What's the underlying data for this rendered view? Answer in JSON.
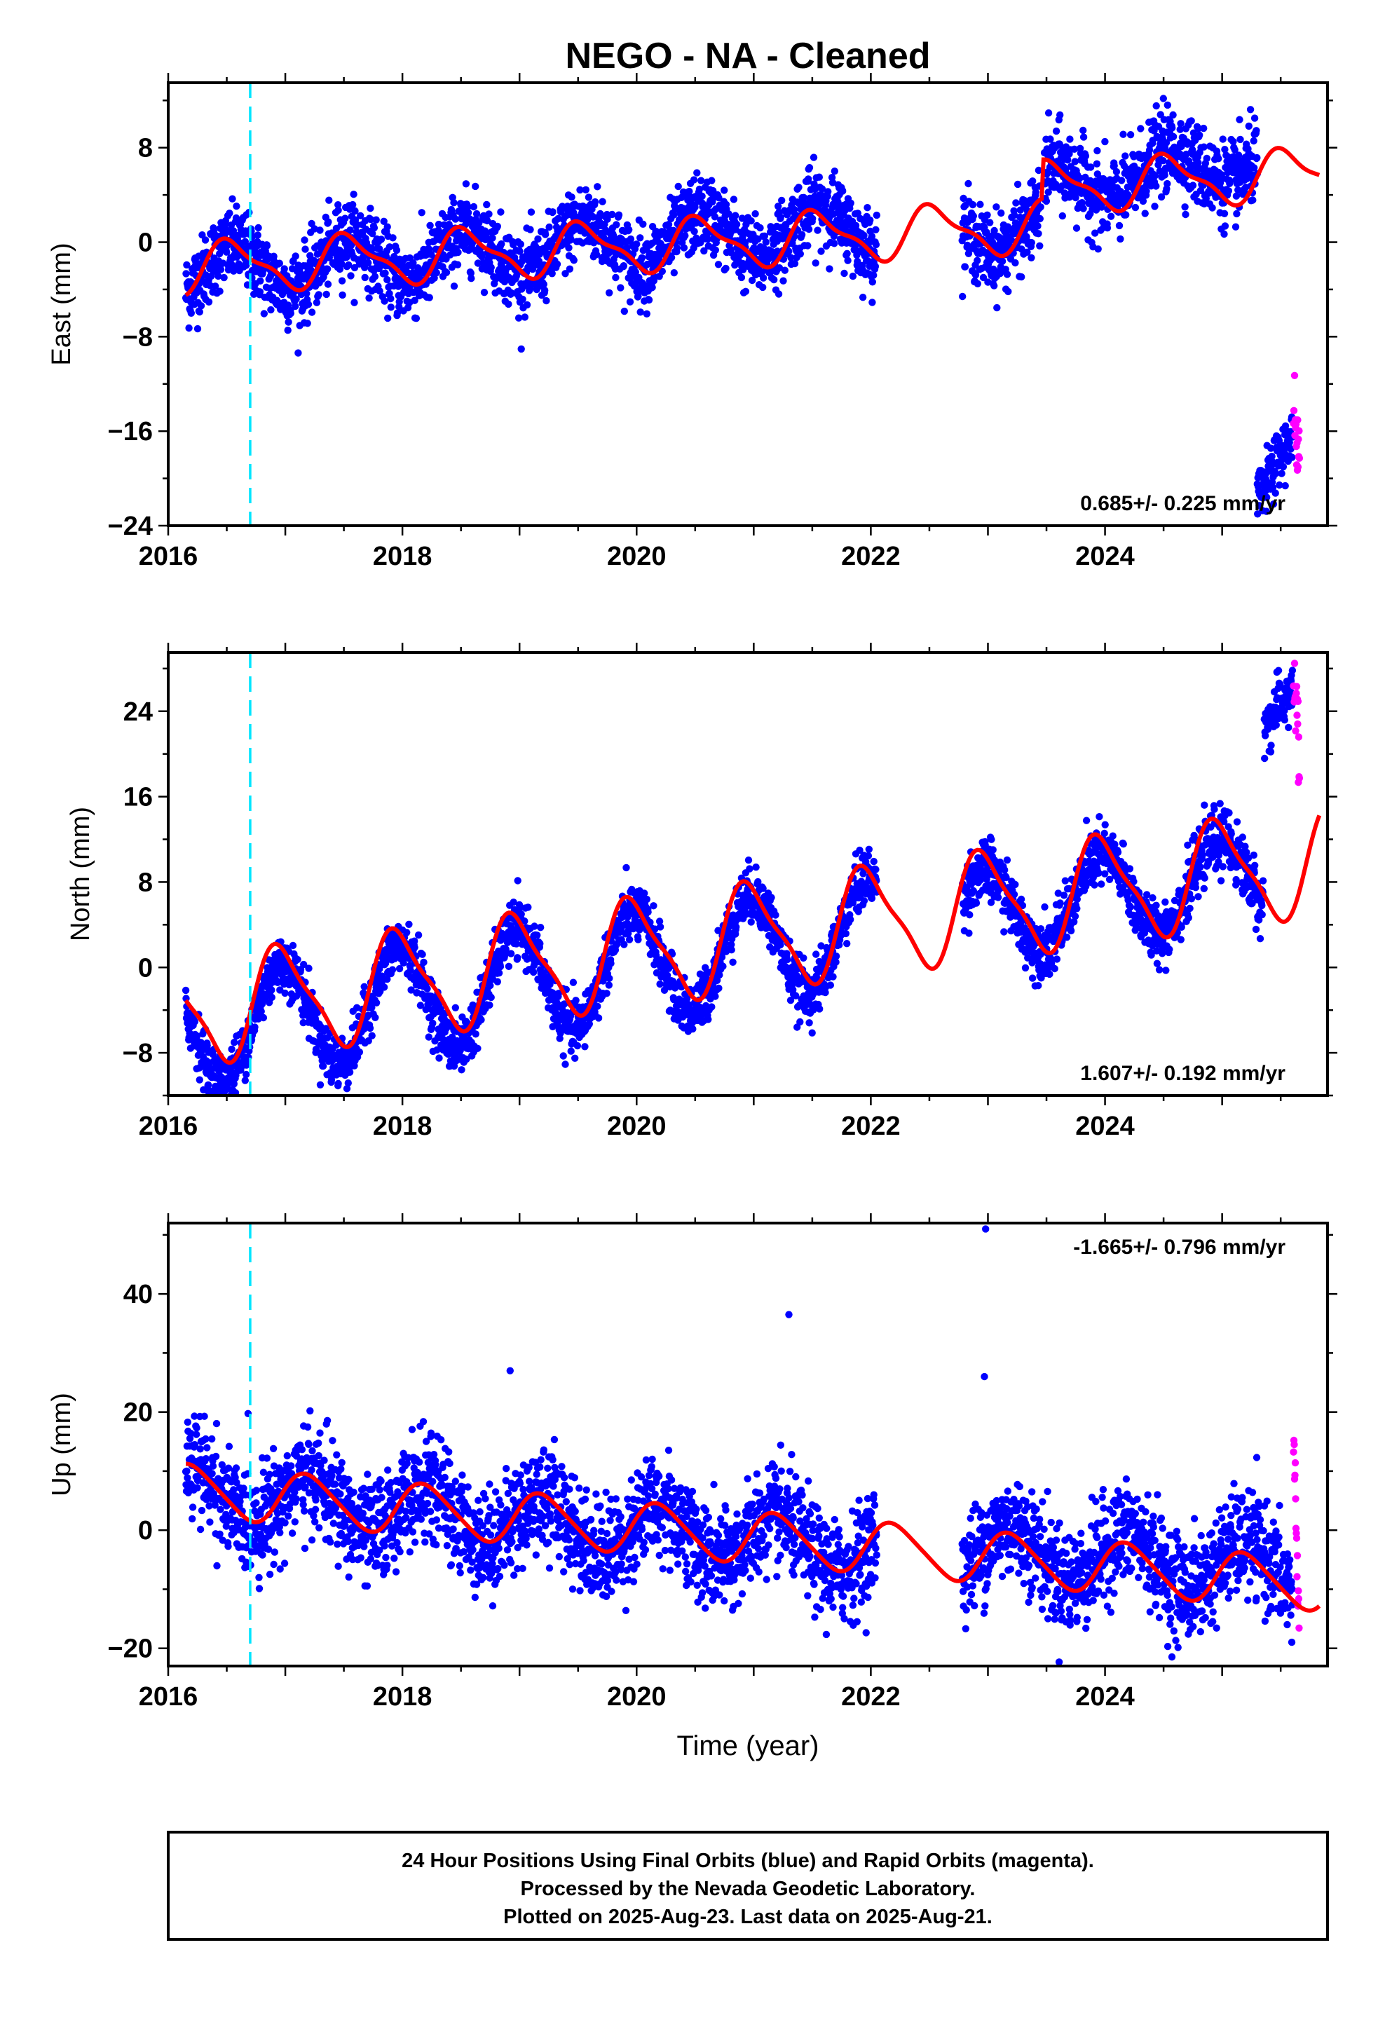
{
  "title": "NEGO  - NA - Cleaned",
  "xlabel": "Time (year)",
  "colors": {
    "final_orbits": "#0000ff",
    "rapid_orbits": "#ff00ff",
    "model": "#ff0000",
    "event_line": "#00e5ff",
    "frame": "#000000"
  },
  "footer": {
    "line1": "24 Hour Positions Using Final Orbits (blue) and Rapid Orbits (magenta).",
    "line2": "Processed by the Nevada Geodetic Laboratory.",
    "line3": "Plotted on 2025-Aug-23. Last data on 2025-Aug-21."
  },
  "chart_data": [
    {
      "type": "scatter",
      "component": "East",
      "ylabel": "East (mm)",
      "xlim": [
        2016.0,
        2025.9
      ],
      "ylim": [
        -24,
        13.5
      ],
      "xticks": [
        2016,
        2018,
        2020,
        2022,
        2024
      ],
      "yticks": [
        -24,
        -16,
        -8,
        0,
        8
      ],
      "velocity_label": "0.685+/- 0.225 mm/yr",
      "event_line_x": 2016.7,
      "series": [
        {
          "role": "final-orbits",
          "segments": [
            {
              "x_start": 2016.15,
              "x_end": 2022.05,
              "trend_start": -2.6,
              "trend_end": 1.4,
              "amplitude": 2.0,
              "phase": 0.3,
              "scatter": 1.6
            },
            {
              "x_start": 2022.78,
              "x_end": 2023.45,
              "trend_start": 1.2,
              "trend_end": 1.0,
              "amplitude": 2.0,
              "phase": 0.3,
              "scatter": 1.6
            },
            {
              "x_start": 2023.48,
              "x_end": 2025.3,
              "trend_start": 4.5,
              "trend_end": 7.2,
              "amplitude": 1.8,
              "phase": 0.3,
              "scatter": 1.7
            },
            {
              "x_start": 2025.3,
              "x_end": 2025.6,
              "trend_start": -22.0,
              "trend_end": -17.0,
              "amplitude": 0.5,
              "phase": 0.3,
              "scatter": 1.2
            }
          ]
        },
        {
          "role": "rapid-orbits",
          "segments": [
            {
              "x_start": 2025.61,
              "x_end": 2025.66,
              "trend_start": -15.0,
              "trend_end": -20.0,
              "amplitude": 0,
              "phase": 0,
              "scatter": 2.2
            }
          ]
        }
      ],
      "model": {
        "x_start": 2016.15,
        "x_end": 2025.83,
        "trend_start": -2.2,
        "trend_end": 2.5,
        "annual_amplitude": 2.0,
        "annual_phase": 0.3,
        "semiannual_amplitude": 0.7,
        "offsets": [
          {
            "x": 2023.47,
            "size": 3.3
          }
        ]
      }
    },
    {
      "type": "scatter",
      "component": "North",
      "ylabel": "North (mm)",
      "xlim": [
        2016.0,
        2025.9
      ],
      "ylim": [
        -12,
        29.5
      ],
      "xticks": [
        2016,
        2018,
        2020,
        2022,
        2024
      ],
      "yticks": [
        -8,
        0,
        8,
        16,
        24
      ],
      "velocity_label": "1.607+/- 0.192 mm/yr",
      "event_line_x": 2016.7,
      "series": [
        {
          "role": "final-orbits",
          "segments": [
            {
              "x_start": 2016.15,
              "x_end": 2022.05,
              "trend_start": -6.1,
              "trend_end": 3.5,
              "amplitude": 5.0,
              "phase": 0.72,
              "scatter": 1.3
            },
            {
              "x_start": 2022.78,
              "x_end": 2025.35,
              "trend_start": 4.8,
              "trend_end": 8.6,
              "amplitude": 4.0,
              "phase": 0.72,
              "scatter": 1.4
            },
            {
              "x_start": 2025.36,
              "x_end": 2025.6,
              "trend_start": 23.0,
              "trend_end": 26.5,
              "amplitude": 0.5,
              "phase": 0.72,
              "scatter": 1.3
            }
          ]
        },
        {
          "role": "rapid-orbits",
          "segments": [
            {
              "x_start": 2025.61,
              "x_end": 2025.66,
              "trend_start": 28.0,
              "trend_end": 19.0,
              "amplitude": 0,
              "phase": 0,
              "scatter": 2.5
            }
          ]
        }
      ],
      "model": {
        "x_start": 2016.15,
        "x_end": 2025.83,
        "trend_start": -4.2,
        "trend_end": 10.0,
        "annual_amplitude": 4.8,
        "annual_phase": 0.72,
        "semiannual_amplitude": 1.2,
        "offsets": []
      }
    },
    {
      "type": "scatter",
      "component": "Up",
      "ylabel": "Up (mm)",
      "xlim": [
        2016.0,
        2025.9
      ],
      "ylim": [
        -23,
        52
      ],
      "xticks": [
        2016,
        2018,
        2020,
        2022,
        2024
      ],
      "yticks": [
        -20,
        0,
        20,
        40
      ],
      "velocity_label": "-1.665+/- 0.796 mm/yr",
      "event_line_x": 2016.7,
      "series": [
        {
          "role": "final-orbits",
          "segments": [
            {
              "x_start": 2016.15,
              "x_end": 2022.05,
              "trend_start": 6.5,
              "trend_end": -3.5,
              "amplitude": 4.3,
              "phase": 0.95,
              "scatter": 4.3
            },
            {
              "x_start": 2022.78,
              "x_end": 2025.6,
              "trend_start": -3.0,
              "trend_end": -7.0,
              "amplitude": 4.3,
              "phase": 0.95,
              "scatter": 4.3
            }
          ],
          "outliers": [
            {
              "x": 2022.98,
              "y": 51.0
            },
            {
              "x": 2021.3,
              "y": 36.5
            },
            {
              "x": 2018.92,
              "y": 27.0
            },
            {
              "x": 2022.97,
              "y": 26.0
            }
          ]
        },
        {
          "role": "rapid-orbits",
          "segments": [
            {
              "x_start": 2025.61,
              "x_end": 2025.66,
              "trend_start": 17.0,
              "trend_end": -20.0,
              "amplitude": 0,
              "phase": 0,
              "scatter": 3.0
            }
          ]
        }
      ],
      "model": {
        "x_start": 2016.15,
        "x_end": 2025.83,
        "trend_start": 6.8,
        "trend_end": -9.3,
        "annual_amplitude": 4.3,
        "annual_phase": 0.95,
        "semiannual_amplitude": 0.6,
        "offsets": []
      }
    }
  ]
}
